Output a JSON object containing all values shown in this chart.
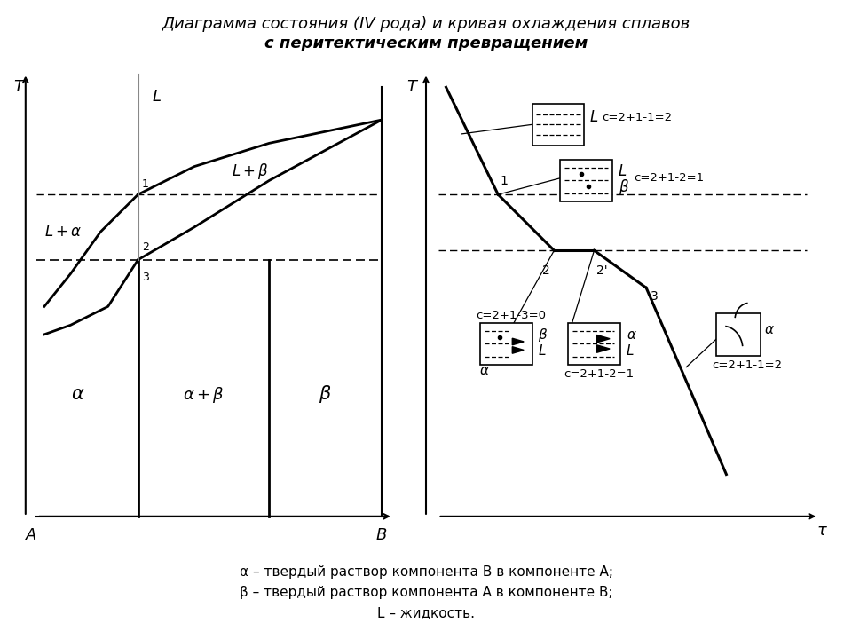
{
  "title_line1": "Диаграмма состояния (IV рода) и кривая охлаждения сплавов",
  "title_line2": "с перитектическим превращением",
  "caption_line1": "α – твердый раствор компонента B в компоненте A;",
  "caption_line2": "β – твердый раствор компонента A в компоненте B;",
  "caption_line3": "L – жидкость.",
  "bg_color": "#ffffff",
  "line_color": "#000000"
}
